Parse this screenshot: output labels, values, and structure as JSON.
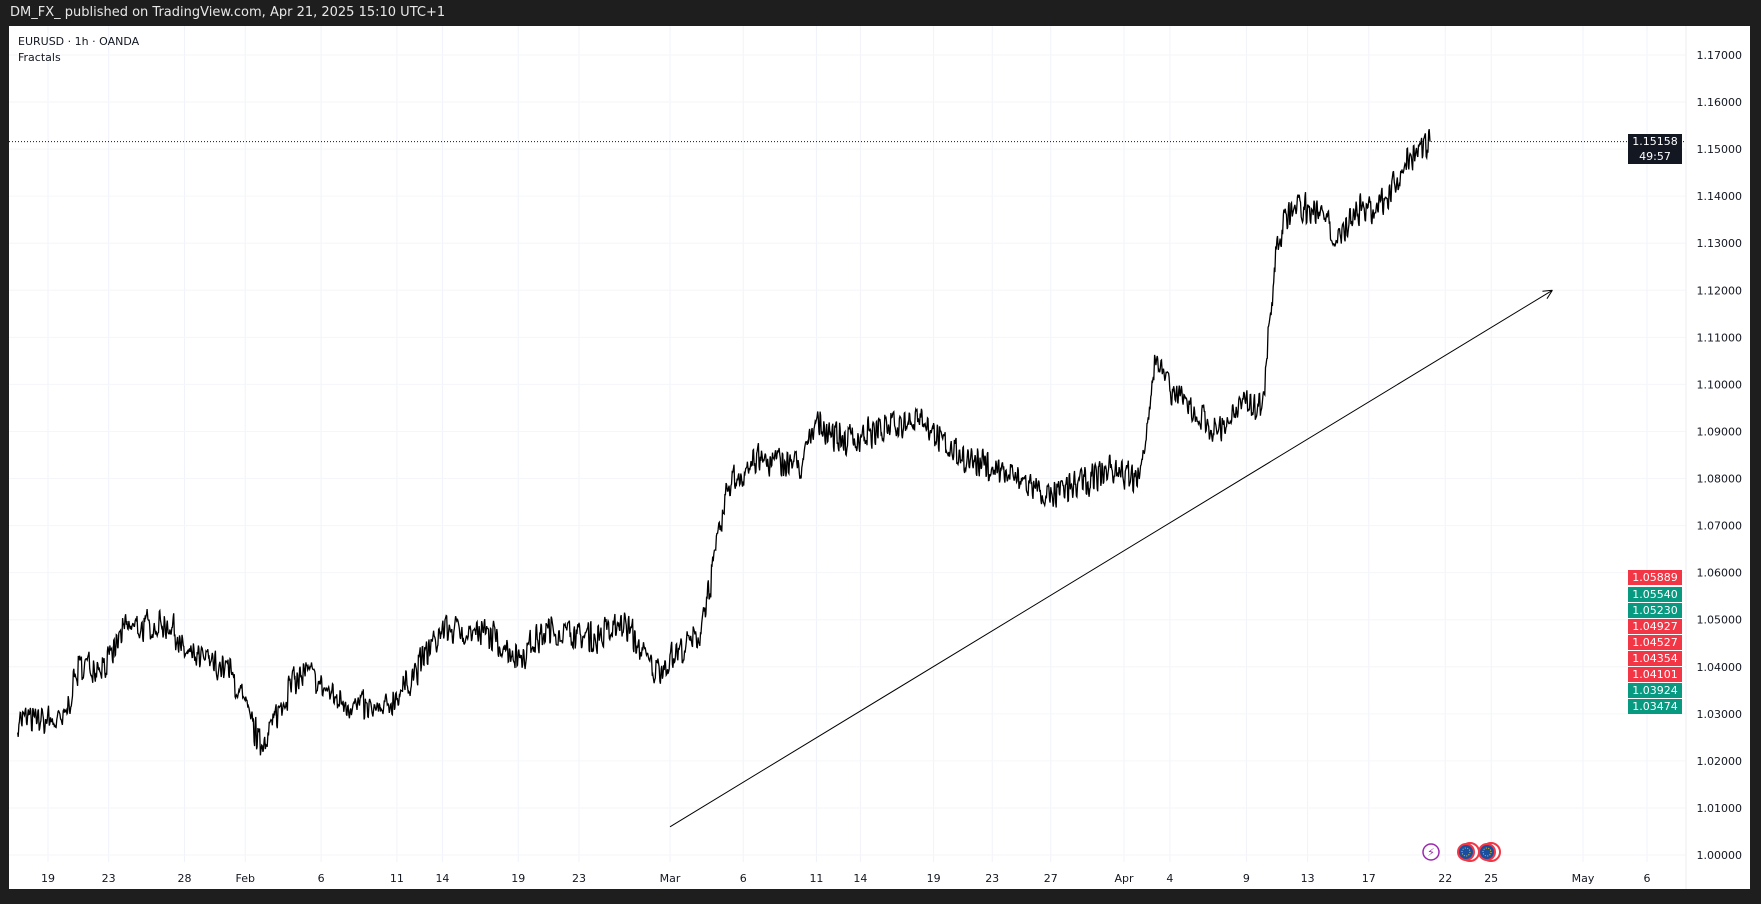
{
  "header": {
    "published": "DM_FX_ published on TradingView.com, Apr 21, 2025 15:10 UTC+1"
  },
  "legend": {
    "symbol": "EURUSD · 1h · OANDA",
    "indicator": "Fractals"
  },
  "current_price": {
    "value": "1.15158",
    "countdown": "49:57",
    "color": "#131722"
  },
  "fractal_labels": [
    {
      "value": "1.05889",
      "color": "#f23645",
      "price": 1.05889
    },
    {
      "value": "1.05540",
      "color": "#089981",
      "price": 1.0554
    },
    {
      "value": "1.05230",
      "color": "#089981",
      "price": 1.0523
    },
    {
      "value": "1.04927",
      "color": "#f23645",
      "price": 1.04927
    },
    {
      "value": "1.04527",
      "color": "#f23645",
      "price": 1.04527
    },
    {
      "value": "1.04354",
      "color": "#f23645",
      "price": 1.04354
    },
    {
      "value": "1.04101",
      "color": "#f23645",
      "price": 1.04101
    },
    {
      "value": "1.03924",
      "color": "#089981",
      "price": 1.03924
    },
    {
      "value": "1.03474",
      "color": "#089981",
      "price": 1.03474
    }
  ],
  "chart_data": {
    "type": "line",
    "title": "",
    "xlabel": "",
    "ylabel": "",
    "ylim": [
      1.0,
      1.17
    ],
    "y_ticks": [
      "1.00000",
      "1.01000",
      "1.02000",
      "1.03000",
      "1.04000",
      "1.05000",
      "1.06000",
      "1.07000",
      "1.08000",
      "1.09000",
      "1.10000",
      "1.11000",
      "1.12000",
      "1.13000",
      "1.14000",
      "1.15000",
      "1.16000",
      "1.17000"
    ],
    "x_ticks": [
      {
        "label": "19",
        "date": "2025-01-19"
      },
      {
        "label": "23",
        "date": "2025-01-23"
      },
      {
        "label": "28",
        "date": "2025-01-28"
      },
      {
        "label": "Feb",
        "date": "2025-02-01"
      },
      {
        "label": "6",
        "date": "2025-02-06"
      },
      {
        "label": "11",
        "date": "2025-02-11"
      },
      {
        "label": "14",
        "date": "2025-02-14"
      },
      {
        "label": "19",
        "date": "2025-02-19"
      },
      {
        "label": "23",
        "date": "2025-02-23"
      },
      {
        "label": "Mar",
        "date": "2025-03-01"
      },
      {
        "label": "6",
        "date": "2025-03-06"
      },
      {
        "label": "11",
        "date": "2025-03-11"
      },
      {
        "label": "14",
        "date": "2025-03-14"
      },
      {
        "label": "19",
        "date": "2025-03-19"
      },
      {
        "label": "23",
        "date": "2025-03-23"
      },
      {
        "label": "27",
        "date": "2025-03-27"
      },
      {
        "label": "Apr",
        "date": "2025-04-01"
      },
      {
        "label": "4",
        "date": "2025-04-04"
      },
      {
        "label": "9",
        "date": "2025-04-09"
      },
      {
        "label": "13",
        "date": "2025-04-13"
      },
      {
        "label": "17",
        "date": "2025-04-17"
      },
      {
        "label": "22",
        "date": "2025-04-22"
      },
      {
        "label": "25",
        "date": "2025-04-25"
      },
      {
        "label": "May",
        "date": "2025-05-01"
      },
      {
        "label": "6",
        "date": "2025-05-06"
      }
    ],
    "series": [
      {
        "points": [
          [
            "2025-01-17",
            1.029
          ],
          [
            "2025-01-20",
            1.028
          ],
          [
            "2025-01-21",
            1.04
          ],
          [
            "2025-01-23",
            1.041
          ],
          [
            "2025-01-24",
            1.048
          ],
          [
            "2025-01-27",
            1.049
          ],
          [
            "2025-01-28",
            1.043
          ],
          [
            "2025-01-31",
            1.039
          ],
          [
            "2025-02-02",
            1.023
          ],
          [
            "2025-02-04",
            1.036
          ],
          [
            "2025-02-05",
            1.039
          ],
          [
            "2025-02-07",
            1.033
          ],
          [
            "2025-02-10",
            1.03
          ],
          [
            "2025-02-12",
            1.038
          ],
          [
            "2025-02-14",
            1.048
          ],
          [
            "2025-02-17",
            1.047
          ],
          [
            "2025-02-19",
            1.042
          ],
          [
            "2025-02-21",
            1.048
          ],
          [
            "2025-02-24",
            1.046
          ],
          [
            "2025-02-26",
            1.049
          ],
          [
            "2025-02-28",
            1.039
          ],
          [
            "2025-03-03",
            1.047
          ],
          [
            "2025-03-04",
            1.062
          ],
          [
            "2025-03-05",
            1.079
          ],
          [
            "2025-03-07",
            1.084
          ],
          [
            "2025-03-10",
            1.083
          ],
          [
            "2025-03-11",
            1.092
          ],
          [
            "2025-03-13",
            1.088
          ],
          [
            "2025-03-17",
            1.092
          ],
          [
            "2025-03-18",
            1.094
          ],
          [
            "2025-03-20",
            1.086
          ],
          [
            "2025-03-24",
            1.081
          ],
          [
            "2025-03-26",
            1.078
          ],
          [
            "2025-03-27",
            1.076
          ],
          [
            "2025-03-31",
            1.082
          ],
          [
            "2025-04-02",
            1.08
          ],
          [
            "2025-04-03",
            1.105
          ],
          [
            "2025-04-04",
            1.099
          ],
          [
            "2025-04-07",
            1.09
          ],
          [
            "2025-04-09",
            1.096
          ],
          [
            "2025-04-10",
            1.095
          ],
          [
            "2025-04-11",
            1.13
          ],
          [
            "2025-04-12",
            1.138
          ],
          [
            "2025-04-14",
            1.136
          ],
          [
            "2025-04-15",
            1.13
          ],
          [
            "2025-04-16",
            1.137
          ],
          [
            "2025-04-17",
            1.137
          ],
          [
            "2025-04-18",
            1.139
          ],
          [
            "2025-04-20",
            1.15
          ],
          [
            "2025-04-21",
            1.15158
          ]
        ]
      }
    ],
    "annotations": [
      {
        "type": "arrow",
        "from": [
          "2025-03-01",
          1.006
        ],
        "to": [
          "2025-04-29",
          1.12
        ]
      }
    ],
    "event_icons": [
      "lightning-icon",
      "eu-flag-icon",
      "eu-flag-icon"
    ],
    "grid": true
  }
}
